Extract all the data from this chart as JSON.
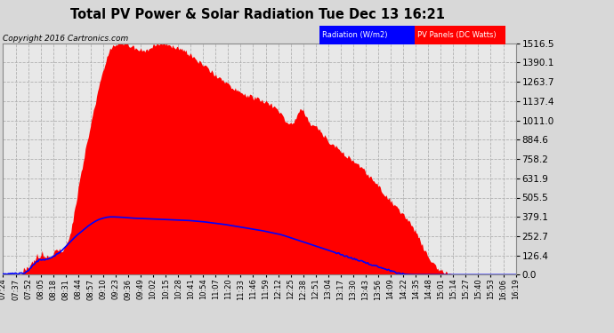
{
  "title": "Total PV Power & Solar Radiation Tue Dec 13 16:21",
  "copyright": "Copyright 2016 Cartronics.com",
  "legend_labels": [
    "Radiation (W/m2)",
    "PV Panels (DC Watts)"
  ],
  "legend_colors": [
    "blue",
    "red"
  ],
  "yticks": [
    0.0,
    126.4,
    252.7,
    379.1,
    505.5,
    631.9,
    758.2,
    884.6,
    1011.0,
    1137.4,
    1263.7,
    1390.1,
    1516.5
  ],
  "ymax": 1516.5,
  "ymin": 0.0,
  "bg_color": "#d8d8d8",
  "plot_bg_color": "#e8e8e8",
  "grid_color": "#b0b0b0",
  "red_color": "#ff0000",
  "blue_color": "#0000ff",
  "title_fontsize": 11,
  "x_labels": [
    "07:24",
    "07:37",
    "07:52",
    "08:05",
    "08:18",
    "08:31",
    "08:44",
    "08:57",
    "09:10",
    "09:23",
    "09:36",
    "09:49",
    "10:02",
    "10:15",
    "10:28",
    "10:41",
    "10:54",
    "11:07",
    "11:20",
    "11:33",
    "11:46",
    "11:59",
    "12:12",
    "12:25",
    "12:38",
    "12:51",
    "13:04",
    "13:17",
    "13:30",
    "13:43",
    "13:56",
    "14:09",
    "14:22",
    "14:35",
    "14:48",
    "15:01",
    "15:14",
    "15:27",
    "15:40",
    "15:53",
    "16:06",
    "16:19"
  ],
  "pv_profile": [
    0,
    2,
    3,
    4,
    5,
    8,
    10,
    30,
    80,
    100,
    120,
    90,
    110,
    130,
    140,
    160,
    200,
    280,
    420,
    580,
    720,
    860,
    980,
    1100,
    1220,
    1330,
    1420,
    1480,
    1510,
    1516,
    1516,
    1510,
    1500,
    1490,
    1480,
    1470,
    1460,
    1490,
    1510,
    1516,
    1516,
    1510,
    1500,
    1495,
    1490,
    1480,
    1460,
    1440,
    1420,
    1400,
    1380,
    1360,
    1340,
    1320,
    1300,
    1280,
    1260,
    1240,
    1220,
    1200,
    1190,
    1180,
    1170,
    1160,
    1150,
    1140,
    1130,
    1120,
    1100,
    1080,
    1050,
    1000,
    980,
    1000,
    1050,
    1100,
    1050,
    1000,
    980,
    960,
    940,
    900,
    870,
    850,
    830,
    810,
    790,
    770,
    750,
    730,
    710,
    680,
    650,
    620,
    590,
    560,
    530,
    500,
    470,
    440,
    410,
    380,
    350,
    310,
    270,
    220,
    160,
    110,
    80,
    50,
    30,
    20,
    10,
    5,
    2,
    0,
    0,
    0,
    0,
    0,
    0,
    0,
    0,
    0,
    0,
    0,
    0,
    0,
    0,
    0
  ],
  "solar_profile": [
    5,
    5,
    6,
    7,
    8,
    10,
    15,
    30,
    60,
    80,
    100,
    95,
    105,
    115,
    125,
    140,
    160,
    185,
    210,
    235,
    258,
    278,
    298,
    318,
    335,
    350,
    362,
    370,
    376,
    379,
    379,
    378,
    377,
    375,
    373,
    371,
    370,
    369,
    368,
    367,
    366,
    365,
    364,
    363,
    362,
    361,
    360,
    359,
    358,
    357,
    356,
    354,
    352,
    350,
    348,
    345,
    342,
    339,
    336,
    333,
    330,
    326,
    322,
    318,
    314,
    310,
    306,
    302,
    298,
    294,
    290,
    285,
    280,
    275,
    270,
    265,
    258,
    250,
    242,
    234,
    226,
    218,
    210,
    202,
    194,
    186,
    178,
    170,
    162,
    154,
    146,
    138,
    130,
    122,
    114,
    106,
    98,
    90,
    82,
    74,
    66,
    58,
    50,
    42,
    34,
    26,
    18,
    12,
    7,
    3,
    1,
    0,
    0,
    0,
    0,
    0,
    0,
    0,
    0,
    0,
    0,
    0,
    0,
    0,
    0,
    0,
    0,
    0,
    0,
    0,
    0,
    0,
    0,
    0,
    0,
    0,
    0,
    0,
    0,
    0
  ]
}
